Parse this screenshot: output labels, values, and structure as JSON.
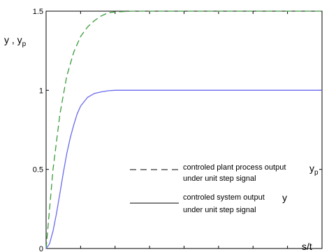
{
  "chart_data": {
    "type": "line",
    "ylabel_main": "y , y",
    "ylabel_sub": "p",
    "xlabel": "s/t",
    "xlim": [
      0,
      800
    ],
    "ylim": [
      0,
      1.5
    ],
    "grid": false,
    "x_ticks": [
      "0",
      "100",
      "200",
      "300",
      "400",
      "500",
      "600",
      "700",
      "800"
    ],
    "y_ticks": [
      "0",
      "0.5",
      "1",
      "1.5"
    ],
    "legend_position": "bottom-right",
    "series": [
      {
        "name": "controled plant process output",
        "symbol": "y",
        "symbol_sub": "p",
        "name_line2": "under unit step signal",
        "style": "dashed",
        "color": "#3a9a3a",
        "x": [
          0,
          20,
          40,
          60,
          80,
          100,
          120,
          140,
          160,
          180,
          200,
          250,
          300,
          400,
          500,
          600,
          700,
          800
        ],
        "values": [
          0,
          0.5,
          0.85,
          1.09,
          1.24,
          1.34,
          1.4,
          1.44,
          1.47,
          1.49,
          1.495,
          1.5,
          1.5,
          1.5,
          1.5,
          1.5,
          1.5,
          1.5
        ]
      },
      {
        "name": "controled system output",
        "symbol": "y",
        "symbol_sub": "",
        "name_line2": "under unit step signal",
        "style": "solid",
        "color": "#6a6aee",
        "x": [
          0,
          10,
          20,
          30,
          40,
          50,
          60,
          70,
          80,
          90,
          100,
          120,
          140,
          160,
          180,
          200,
          250,
          300,
          400,
          500,
          600,
          700,
          800
        ],
        "values": [
          0,
          0.03,
          0.11,
          0.22,
          0.35,
          0.48,
          0.6,
          0.7,
          0.78,
          0.85,
          0.9,
          0.955,
          0.98,
          0.99,
          0.997,
          1.0,
          1.0,
          1.0,
          1.0,
          1.0,
          1.0,
          1.0,
          1.0
        ]
      }
    ]
  }
}
